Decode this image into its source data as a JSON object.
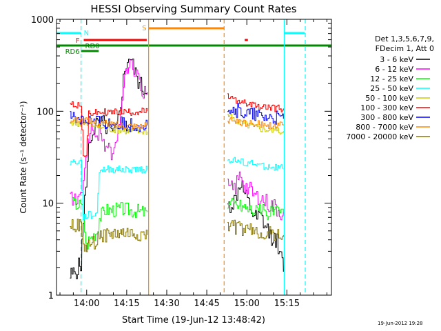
{
  "chart_data": {
    "type": "line",
    "title": "HESSI Observing Summary Count Rates",
    "xlabel": "Start Time (19-Jun-12 13:48:42)",
    "ylabel": "Count Rate (s⁻¹ detector⁻¹)",
    "y_scale": "log",
    "ylim": [
      1,
      1000
    ],
    "x_unit": "minutes since 13:48:42",
    "xlim": [
      0,
      103
    ],
    "x_ticks": [
      {
        "label": "14:00",
        "value": 11.3
      },
      {
        "label": "14:15",
        "value": 26.3
      },
      {
        "label": "14:30",
        "value": 41.3
      },
      {
        "label": "14:45",
        "value": 56.3
      },
      {
        "label": "15:00",
        "value": 71.3
      },
      {
        "label": "15:15",
        "value": 86.3
      }
    ],
    "y_ticks": [
      {
        "label": "1",
        "value": 1
      },
      {
        "label": "10",
        "value": 10
      },
      {
        "label": "100",
        "value": 100
      },
      {
        "label": "1000",
        "value": 1000
      }
    ],
    "legend": {
      "header": [
        "Det 1,3,5,6,7,9,",
        "FDecim 1, Att 0"
      ],
      "position": "right"
    },
    "data_gap": [
      34.3,
      63.3
    ],
    "series": [
      {
        "name": "3 - 6 keV",
        "color": "#000000",
        "seg1": [
          [
            5,
            1.6
          ],
          [
            7,
            1.8
          ],
          [
            9,
            2.2
          ],
          [
            10,
            6
          ],
          [
            11,
            18
          ],
          [
            12,
            40
          ],
          [
            13,
            55
          ],
          [
            14,
            65
          ],
          [
            15,
            70
          ],
          [
            16,
            70
          ],
          [
            17,
            75
          ],
          [
            18,
            70
          ],
          [
            19,
            65
          ],
          [
            20,
            60
          ],
          [
            21,
            55
          ],
          [
            22,
            60
          ],
          [
            23,
            80
          ],
          [
            24,
            130
          ],
          [
            25,
            220
          ],
          [
            26,
            320
          ],
          [
            27,
            400
          ],
          [
            28,
            350
          ],
          [
            29,
            280
          ],
          [
            30,
            230
          ],
          [
            31,
            200
          ],
          [
            32,
            180
          ],
          [
            33,
            170
          ],
          [
            34,
            160
          ]
        ],
        "seg2": [
          [
            64,
            9
          ],
          [
            65,
            9.5
          ],
          [
            66,
            10
          ],
          [
            67,
            11
          ],
          [
            68,
            14
          ],
          [
            69,
            17
          ],
          [
            70,
            13
          ],
          [
            71,
            11
          ],
          [
            72,
            9.5
          ],
          [
            73,
            8
          ],
          [
            74,
            7
          ],
          [
            75,
            6.5
          ],
          [
            76,
            7
          ],
          [
            77,
            6.5
          ],
          [
            78,
            5.5
          ],
          [
            79,
            5
          ],
          [
            80,
            4.5
          ],
          [
            81,
            4.2
          ],
          [
            82,
            4
          ],
          [
            83,
            3.5
          ],
          [
            84,
            2.5
          ],
          [
            85,
            1.8
          ]
        ]
      },
      {
        "name": "6 - 12 keV",
        "color": "#ff00ff",
        "seg1": [
          [
            5,
            12
          ],
          [
            6,
            11
          ],
          [
            8,
            10
          ],
          [
            9,
            11
          ],
          [
            10,
            20
          ],
          [
            11,
            35
          ],
          [
            12,
            55
          ],
          [
            13,
            58
          ],
          [
            14,
            60
          ],
          [
            15,
            58
          ],
          [
            16,
            55
          ],
          [
            17,
            50
          ],
          [
            18,
            45
          ],
          [
            19,
            40
          ],
          [
            20,
            36
          ],
          [
            21,
            34
          ],
          [
            22,
            38
          ],
          [
            23,
            60
          ],
          [
            24,
            110
          ],
          [
            25,
            180
          ],
          [
            26,
            250
          ],
          [
            27,
            350
          ],
          [
            28,
            330
          ],
          [
            29,
            280
          ],
          [
            30,
            230
          ],
          [
            31,
            200
          ],
          [
            32,
            170
          ],
          [
            33,
            160
          ],
          [
            34,
            150
          ]
        ],
        "seg2": [
          [
            64,
            15
          ],
          [
            65,
            14
          ],
          [
            66,
            14
          ],
          [
            67,
            15
          ],
          [
            68,
            18
          ],
          [
            69,
            21
          ],
          [
            70,
            17
          ],
          [
            71,
            15
          ],
          [
            72,
            14
          ],
          [
            73,
            13
          ],
          [
            74,
            12
          ],
          [
            75,
            11.5
          ],
          [
            76,
            12
          ],
          [
            77,
            11
          ],
          [
            78,
            10.5
          ],
          [
            79,
            10
          ],
          [
            80,
            9.5
          ],
          [
            81,
            9.2
          ],
          [
            82,
            9
          ],
          [
            83,
            8.5
          ],
          [
            84,
            8
          ],
          [
            85,
            8
          ]
        ]
      },
      {
        "name": "12 - 25 keV",
        "color": "#00ff00",
        "seg1": [
          [
            6,
            10
          ],
          [
            9,
            9.5
          ],
          [
            10,
            8
          ],
          [
            11,
            3.4
          ],
          [
            12,
            4
          ],
          [
            13,
            4.3
          ],
          [
            15,
            5
          ],
          [
            16,
            7
          ],
          [
            18,
            8.5
          ],
          [
            21,
            8.5
          ],
          [
            24,
            8.7
          ],
          [
            27,
            8.5
          ],
          [
            30,
            8.3
          ],
          [
            33,
            8
          ],
          [
            34,
            8
          ]
        ],
        "seg2": [
          [
            64,
            10
          ],
          [
            67,
            10
          ],
          [
            70,
            9.3
          ],
          [
            73,
            8.6
          ],
          [
            76,
            8.3
          ],
          [
            79,
            8
          ],
          [
            82,
            8
          ],
          [
            85,
            8
          ]
        ]
      },
      {
        "name": "25 - 50 keV",
        "color": "#00ffff",
        "seg1": [
          [
            5,
            28
          ],
          [
            8,
            28
          ],
          [
            9,
            28
          ],
          [
            10,
            7
          ],
          [
            11,
            7.2
          ],
          [
            12,
            7.5
          ],
          [
            13,
            7.3
          ],
          [
            15,
            7.6
          ],
          [
            16,
            23
          ],
          [
            20,
            23.5
          ],
          [
            25,
            23
          ],
          [
            30,
            23.5
          ],
          [
            34,
            23
          ]
        ],
        "seg2": [
          [
            64,
            30
          ],
          [
            67,
            29
          ],
          [
            70,
            28
          ],
          [
            73,
            27
          ],
          [
            76,
            26
          ],
          [
            79,
            25
          ],
          [
            82,
            24.5
          ],
          [
            85,
            24
          ]
        ]
      },
      {
        "name": "50 - 100 keV",
        "color": "#cccc00",
        "seg1": [
          [
            5,
            75
          ],
          [
            8,
            74
          ],
          [
            11,
            72
          ],
          [
            14,
            70
          ],
          [
            17,
            66
          ],
          [
            20,
            64
          ],
          [
            23,
            62
          ],
          [
            27,
            61
          ],
          [
            31,
            60
          ],
          [
            34,
            60
          ]
        ],
        "seg2": [
          [
            64,
            90
          ],
          [
            67,
            80
          ],
          [
            70,
            74
          ],
          [
            73,
            70
          ],
          [
            76,
            66
          ],
          [
            79,
            64
          ],
          [
            82,
            62
          ],
          [
            85,
            61
          ]
        ]
      },
      {
        "name": "100 - 300 keV",
        "color": "#ff0000",
        "seg1": [
          [
            5,
            120
          ],
          [
            8,
            118
          ],
          [
            9,
            110
          ],
          [
            10,
            35
          ],
          [
            11,
            30
          ],
          [
            12,
            95
          ],
          [
            15,
            96
          ],
          [
            18,
            98
          ],
          [
            21,
            97
          ],
          [
            24,
            99
          ],
          [
            27,
            98
          ],
          [
            30,
            99
          ],
          [
            34,
            100
          ]
        ],
        "seg2": [
          [
            64,
            145
          ],
          [
            66,
            135
          ],
          [
            69,
            125
          ],
          [
            72,
            118
          ],
          [
            75,
            113
          ],
          [
            78,
            110
          ],
          [
            81,
            108
          ],
          [
            85,
            107
          ]
        ]
      },
      {
        "name": "300 - 800 keV",
        "color": "#0000ff",
        "seg1": [
          [
            5,
            88
          ],
          [
            8,
            85
          ],
          [
            11,
            82
          ],
          [
            14,
            78
          ],
          [
            17,
            75
          ],
          [
            20,
            74
          ],
          [
            23,
            73
          ],
          [
            27,
            72
          ],
          [
            31,
            72
          ],
          [
            34,
            71
          ]
        ],
        "seg2": [
          [
            64,
            115
          ],
          [
            67,
            104
          ],
          [
            70,
            96
          ],
          [
            73,
            92
          ],
          [
            76,
            88
          ],
          [
            79,
            86
          ],
          [
            82,
            84
          ],
          [
            85,
            83
          ]
        ]
      },
      {
        "name": "800 - 7000 keV",
        "color": "#ff8800",
        "seg1": [
          [
            5,
            82
          ],
          [
            8,
            80
          ],
          [
            11,
            78
          ],
          [
            14,
            76
          ],
          [
            17,
            74
          ],
          [
            20,
            72
          ],
          [
            23,
            71
          ],
          [
            27,
            70
          ],
          [
            31,
            69
          ],
          [
            34,
            69
          ]
        ],
        "seg2": [
          [
            64,
            80
          ],
          [
            67,
            77
          ],
          [
            70,
            75
          ],
          [
            73,
            73
          ],
          [
            76,
            72
          ],
          [
            79,
            71
          ],
          [
            82,
            70
          ],
          [
            85,
            70
          ]
        ]
      },
      {
        "name": "7000 - 20000 keV",
        "color": "#887700",
        "seg1": [
          [
            5,
            6
          ],
          [
            9,
            5.5
          ],
          [
            10,
            3.2
          ],
          [
            12,
            3.5
          ],
          [
            15,
            3.8
          ],
          [
            16,
            4.5
          ],
          [
            20,
            4.5
          ],
          [
            24,
            4.7
          ],
          [
            28,
            4.6
          ],
          [
            32,
            4.5
          ],
          [
            34,
            4.5
          ]
        ],
        "seg2": [
          [
            64,
            6
          ],
          [
            67,
            5.5
          ],
          [
            70,
            5.2
          ],
          [
            73,
            5
          ],
          [
            76,
            4.8
          ],
          [
            79,
            4.7
          ],
          [
            82,
            4.6
          ],
          [
            85,
            4.5
          ]
        ]
      }
    ],
    "flags": [
      {
        "label": "N",
        "color": "#00ffff",
        "bars": [
          [
            0,
            9.2
          ],
          [
            85.3,
            93
          ]
        ]
      },
      {
        "label": "F",
        "color": "#ff0000",
        "bars": [
          [
            10.2,
            33.8
          ],
          [
            70.5,
            71.7
          ]
        ]
      },
      {
        "label": "RD0",
        "color": "#008800",
        "bars": [
          [
            0,
            103
          ]
        ]
      },
      {
        "label": "RD6",
        "color": "#008800",
        "bars": [
          [
            9.2,
            15.8
          ]
        ]
      },
      {
        "label": "S",
        "color": "#ff8800",
        "bars": [
          [
            34.5,
            62.8
          ]
        ]
      }
    ],
    "vlines": [
      {
        "x": 9.2,
        "color": "#00ffff",
        "style": "dashed"
      },
      {
        "x": 85.3,
        "color": "#00ffff",
        "style": "solid"
      },
      {
        "x": 93.2,
        "color": "#00ffff",
        "style": "dashed"
      },
      {
        "x": 34.5,
        "color": "#ff8800",
        "style": "solid"
      },
      {
        "x": 62.8,
        "color": "#ff8800",
        "style": "dashed"
      }
    ]
  },
  "footer": {
    "timestamp": "19-Jun-2012 19:28"
  }
}
